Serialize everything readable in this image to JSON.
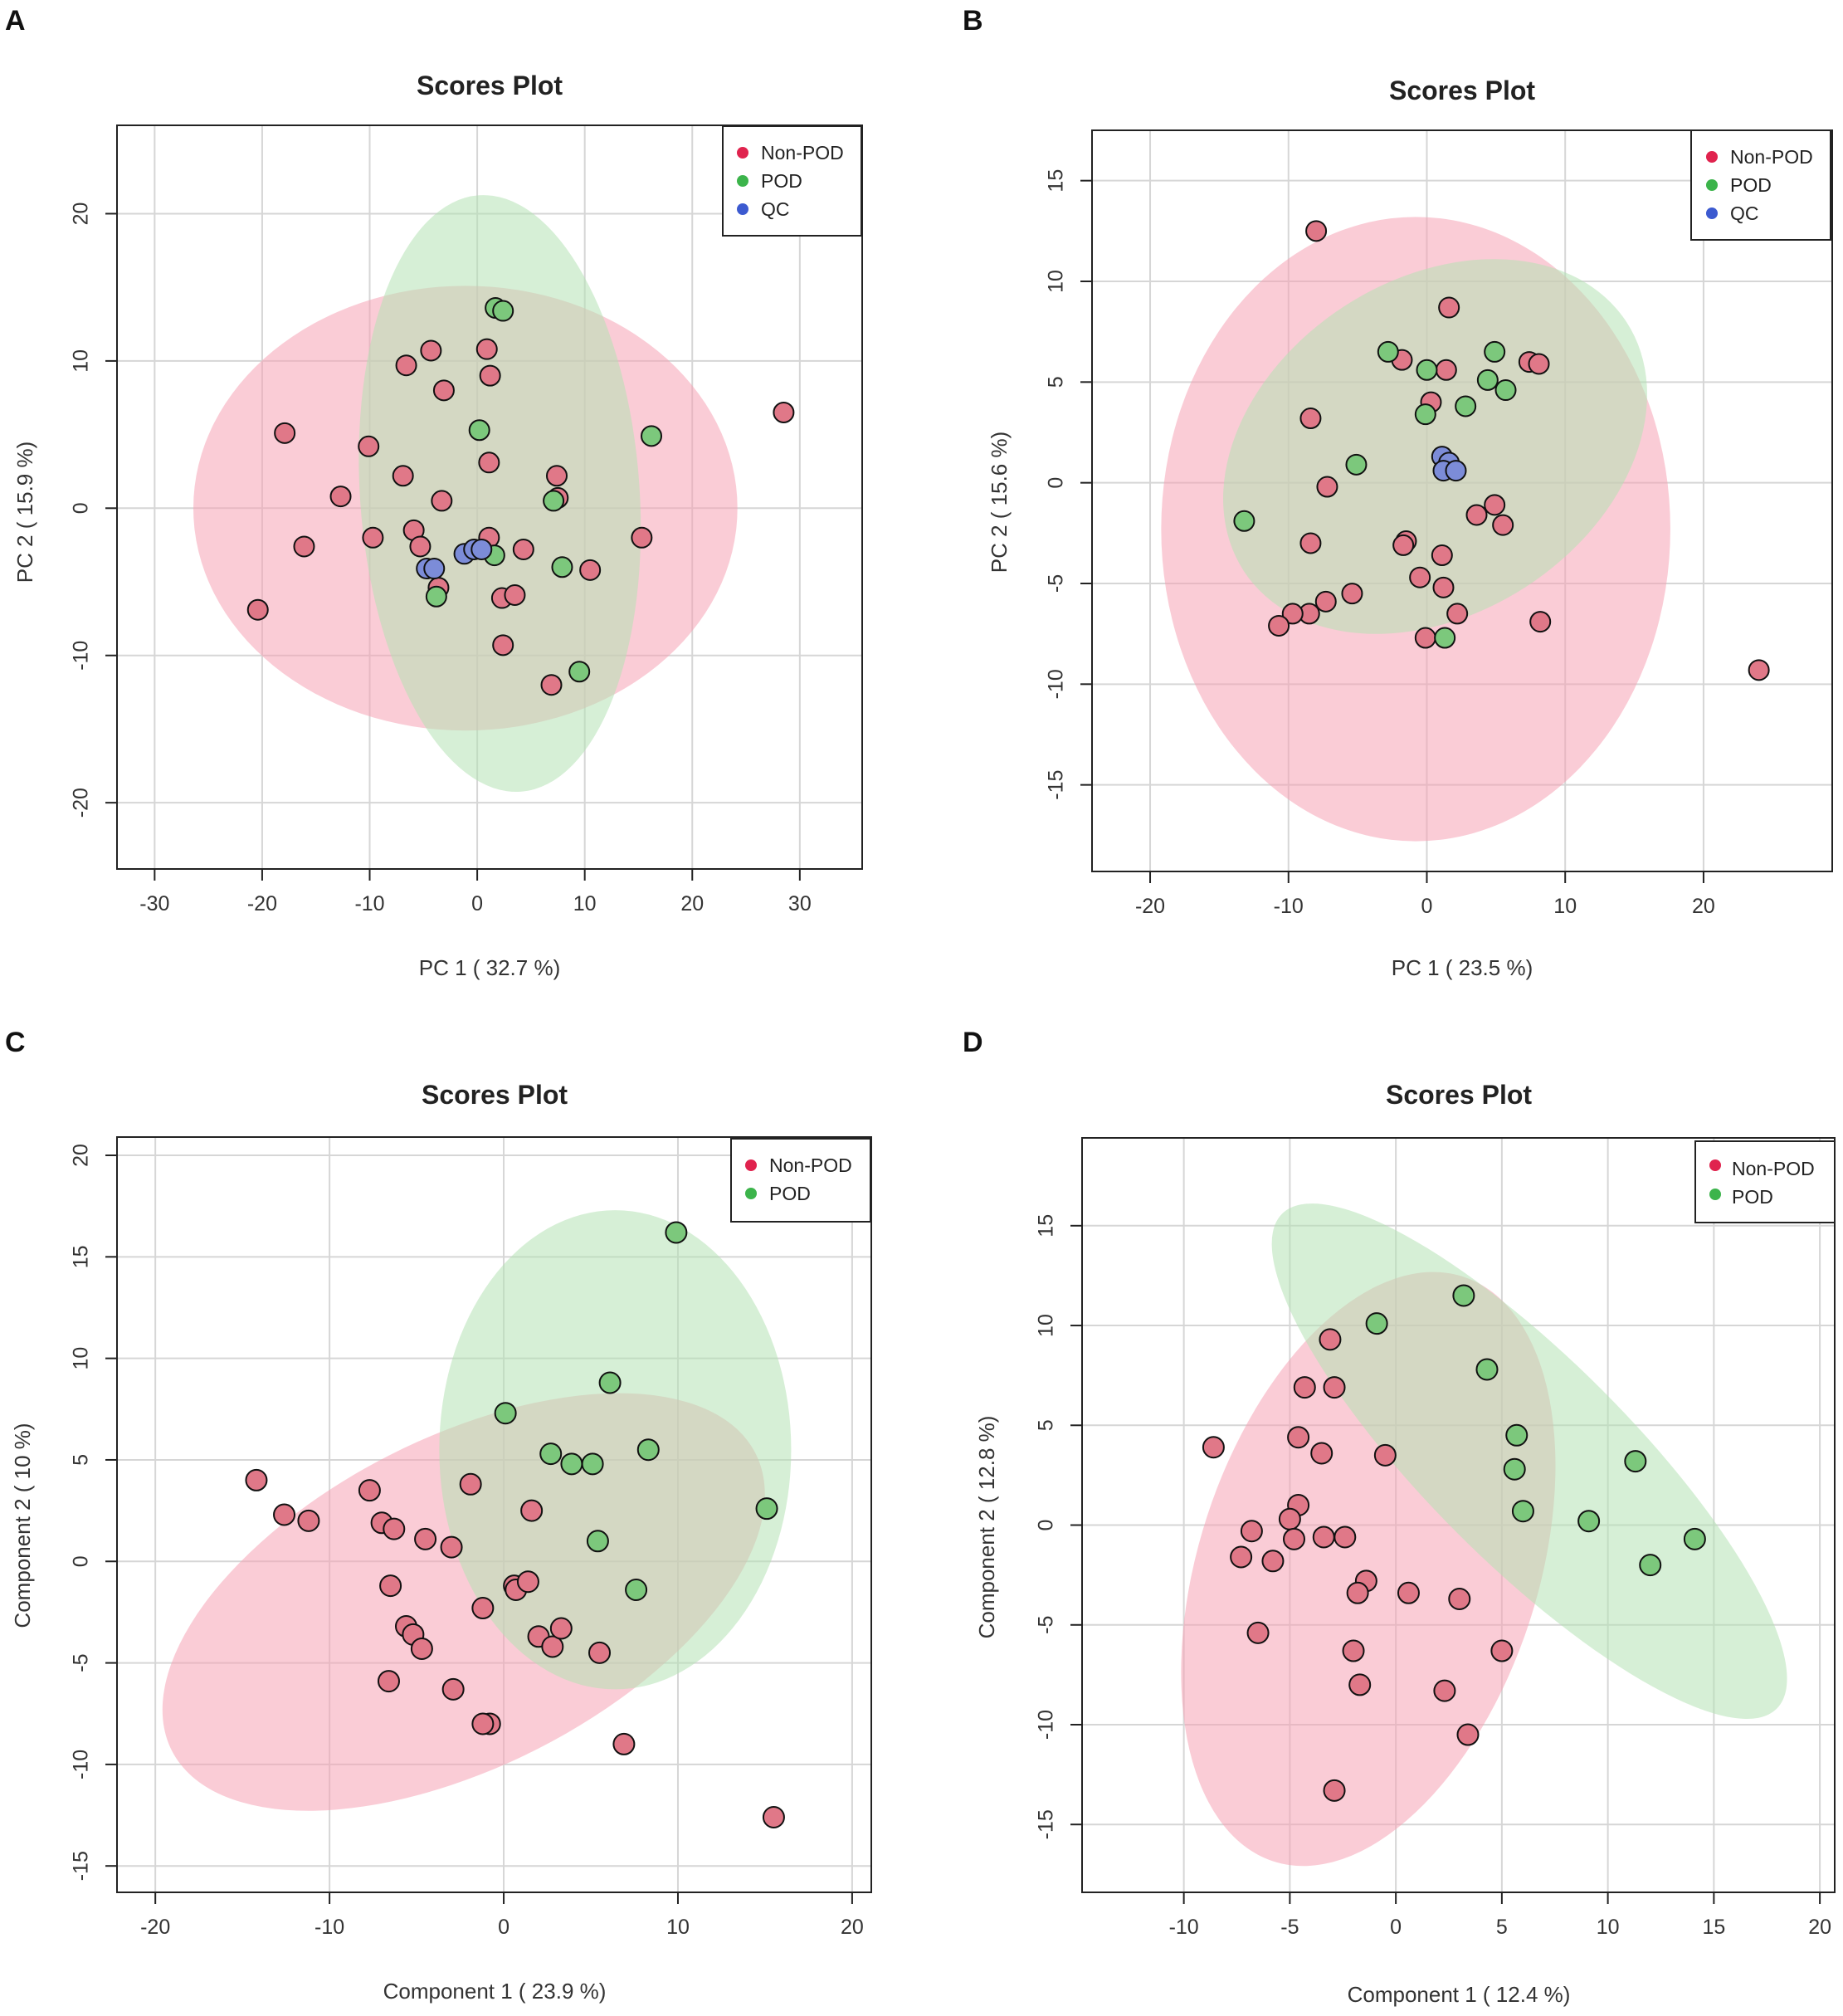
{
  "colors": {
    "non_pod_point": "#e07888",
    "non_pod_legend": "#e0234e",
    "pod_point": "#7cc87c",
    "pod_legend": "#3cb44b",
    "qc_point": "#7c8cd8",
    "qc_legend": "#3c5ad0",
    "non_pod_ellipse": "#f5a3b5",
    "pod_ellipse": "#b4e2b4",
    "grid": "#d6d6d6"
  },
  "chart_data": [
    {
      "id": "A",
      "type": "scatter",
      "title": "Scores Plot",
      "xlabel": "PC 1 ( 32.7 %)",
      "ylabel": "PC 2 ( 15.9 %)",
      "xlim": [
        -33.5,
        35.8
      ],
      "ylim": [
        -24.5,
        26
      ],
      "xticks": [
        -30,
        -20,
        -10,
        0,
        10,
        20,
        30
      ],
      "yticks": [
        -20,
        -10,
        0,
        10,
        20
      ],
      "legend": [
        "Non-POD",
        "POD",
        "QC"
      ],
      "ellipses": [
        {
          "group": "Non-POD",
          "cx": -1.1,
          "cy": 0,
          "rx": 25.3,
          "ry": 15.1,
          "angle": 0
        },
        {
          "group": "POD",
          "cx": 2.1,
          "cy": 1,
          "rx": 13.0,
          "ry": 20.3,
          "angle": 4
        }
      ],
      "series": [
        {
          "name": "Non-POD",
          "x": [
            28.5,
            -17.9,
            -10.1,
            -12.7,
            -6.9,
            -16.1,
            -9.7,
            -20.4,
            -3.1,
            -4.3,
            -6.6,
            -3.3,
            -5.9,
            -5.3,
            -3.6,
            0.9,
            1.2,
            1.1,
            1.1,
            2.3,
            3.5,
            2.4,
            4.3,
            7.4,
            7.5,
            10.5,
            15.3,
            6.9
          ],
          "y": [
            6.5,
            5.1,
            4.2,
            0.8,
            2.2,
            -2.6,
            -2,
            -6.9,
            8,
            10.7,
            9.7,
            0.5,
            -1.5,
            -2.6,
            -5.4,
            10.8,
            9,
            3.1,
            -2,
            -6.1,
            -5.9,
            -9.3,
            -2.8,
            2.2,
            0.7,
            -4.2,
            -2,
            -12
          ]
        },
        {
          "name": "POD",
          "x": [
            1.7,
            2.4,
            0.2,
            16.2,
            7.1,
            -3.8,
            1.6,
            7.9,
            9.5
          ],
          "y": [
            13.6,
            13.4,
            5.3,
            4.9,
            0.5,
            -6,
            -3.2,
            -4,
            -11.1
          ]
        },
        {
          "name": "QC",
          "x": [
            -4.7,
            -4,
            -1.2,
            -0.3,
            0.4
          ],
          "y": [
            -4.1,
            -4.1,
            -3.1,
            -2.8,
            -2.8
          ]
        }
      ]
    },
    {
      "id": "B",
      "type": "scatter",
      "title": "Scores Plot",
      "xlabel": "PC 1 ( 23.5 %)",
      "ylabel": "PC 2 ( 15.6 %)",
      "xlim": [
        -24.2,
        29.3
      ],
      "ylim": [
        -19.3,
        17.5
      ],
      "xticks": [
        -20,
        -10,
        0,
        10,
        20
      ],
      "yticks": [
        -15,
        -10,
        -5,
        0,
        5,
        10,
        15
      ],
      "legend": [
        "Non-POD",
        "POD",
        "QC"
      ],
      "ellipses": [
        {
          "group": "Non-POD",
          "cx": -0.8,
          "cy": -2.3,
          "rx": 18.4,
          "ry": 15.5,
          "angle": 0
        },
        {
          "group": "POD",
          "cx": 0.6,
          "cy": 1.8,
          "rx": 16.5,
          "ry": 8.3,
          "angle": 33
        }
      ],
      "series": [
        {
          "name": "Non-POD",
          "x": [
            -8,
            1.6,
            -1.8,
            1.4,
            7.4,
            8.1,
            0.3,
            -8.4,
            -7.2,
            -8.4,
            -1.5,
            -1.7,
            -5.4,
            -7.3,
            -8.5,
            -9.7,
            -10.7,
            -0.5,
            1.1,
            1.2,
            2.2,
            -0.1,
            3.6,
            5.5,
            4.9,
            8.2,
            24
          ],
          "y": [
            12.5,
            8.7,
            6.1,
            5.6,
            6,
            5.9,
            4,
            3.2,
            -0.2,
            -3,
            -2.9,
            -3.1,
            -5.5,
            -5.9,
            -6.5,
            -6.5,
            -7.1,
            -4.7,
            -3.6,
            -5.2,
            -6.5,
            -7.7,
            -1.6,
            -2.1,
            -1.1,
            -6.9,
            -9.3
          ]
        },
        {
          "name": "POD",
          "x": [
            -2.8,
            0,
            4.9,
            4.4,
            5.7,
            2.8,
            -0.1,
            -5.1,
            -13.2,
            1.3
          ],
          "y": [
            6.5,
            5.6,
            6.5,
            5.1,
            4.6,
            3.8,
            3.4,
            0.9,
            -1.9,
            -7.7
          ]
        },
        {
          "name": "QC",
          "x": [
            1.1,
            1.6,
            1.2,
            2.1
          ],
          "y": [
            1.3,
            1,
            0.6,
            0.6
          ]
        }
      ]
    },
    {
      "id": "C",
      "type": "scatter",
      "title": "Scores Plot",
      "xlabel": "Component 1 ( 23.9 %)",
      "ylabel": "Component 2 ( 10 %)",
      "xlim": [
        -22.2,
        21.1
      ],
      "ylim": [
        -16.3,
        20.9
      ],
      "xticks": [
        -20,
        -10,
        0,
        10,
        20
      ],
      "yticks": [
        -15,
        -10,
        -5,
        0,
        5,
        10,
        15,
        20
      ],
      "legend": [
        "Non-POD",
        "POD"
      ],
      "ellipses": [
        {
          "group": "Non-POD",
          "cx": -2.3,
          "cy": -2,
          "rx": 18.8,
          "ry": 8.1,
          "angle": 27
        },
        {
          "group": "POD",
          "cx": 6.4,
          "cy": 5.5,
          "rx": 10.1,
          "ry": 11.8,
          "angle": 0
        }
      ],
      "series": [
        {
          "name": "Non-POD",
          "x": [
            -14.2,
            -12.6,
            -11.2,
            -7.7,
            -7,
            -6.3,
            -6.5,
            -5.6,
            -5.2,
            -4.7,
            -4.5,
            -3,
            -1.9,
            -1.2,
            -0.8,
            0.6,
            0.7,
            1.4,
            1.6,
            2,
            2.8,
            3.3,
            5.5,
            6.9,
            -6.6,
            -2.9,
            -1.2,
            15.5
          ],
          "y": [
            4,
            2.3,
            2,
            3.5,
            1.9,
            1.6,
            -1.2,
            -3.2,
            -3.6,
            -4.3,
            1.1,
            0.7,
            3.8,
            -2.3,
            -8,
            -1.2,
            -1.4,
            -1,
            2.5,
            -3.7,
            -4.2,
            -3.3,
            -4.5,
            -9,
            -5.9,
            -6.3,
            -8,
            -12.6
          ]
        },
        {
          "name": "POD",
          "x": [
            9.9,
            6.1,
            8.3,
            0.1,
            2.7,
            3.9,
            5.1,
            15.1,
            5.4,
            7.6
          ],
          "y": [
            16.2,
            8.8,
            5.5,
            7.3,
            5.3,
            4.8,
            4.8,
            2.6,
            1,
            -1.4
          ]
        }
      ]
    },
    {
      "id": "D",
      "type": "scatter",
      "title": "Scores Plot",
      "xlabel": "Component 1 ( 12.4 %)",
      "ylabel": "Component 2 ( 12.8 %)",
      "xlim": [
        -14.8,
        20.7
      ],
      "ylim": [
        -18.4,
        19.4
      ],
      "xticks": [
        -10,
        -5,
        0,
        5,
        10,
        15,
        20
      ],
      "yticks": [
        -15,
        -10,
        -5,
        0,
        5,
        10,
        15
      ],
      "legend": [
        "Non-POD",
        "POD"
      ],
      "ellipses": [
        {
          "group": "Non-POD",
          "cx": -1.3,
          "cy": -2.2,
          "rx": 8.0,
          "ry": 15.4,
          "angle": -18
        },
        {
          "group": "POD",
          "cx": 6.3,
          "cy": 3.2,
          "rx": 16.5,
          "ry": 5.1,
          "angle": -45
        }
      ],
      "series": [
        {
          "name": "Non-POD",
          "x": [
            -3.1,
            -4.3,
            -2.9,
            -8.6,
            -4.6,
            -3.5,
            -0.5,
            -4.6,
            -6.8,
            -5,
            -3.4,
            -2.4,
            -7.3,
            -5.8,
            -4.8,
            -1.4,
            -1.8,
            0.6,
            3,
            5,
            -6.5,
            -2,
            -1.7,
            2.3,
            3.4,
            -2.9
          ],
          "y": [
            9.3,
            6.9,
            6.9,
            3.9,
            4.4,
            3.6,
            3.5,
            1,
            -0.3,
            0.3,
            -0.6,
            -0.6,
            -1.6,
            -1.8,
            -0.7,
            -2.8,
            -3.4,
            -3.4,
            -3.7,
            -6.3,
            -5.4,
            -6.3,
            -8,
            -8.3,
            -10.5,
            -13.3
          ]
        },
        {
          "name": "POD",
          "x": [
            3.2,
            -0.9,
            4.3,
            5.7,
            5.6,
            6,
            11.3,
            9.1,
            14.1,
            12
          ],
          "y": [
            11.5,
            10.1,
            7.8,
            4.5,
            2.8,
            0.7,
            3.2,
            0.2,
            -0.7,
            -2
          ]
        }
      ]
    }
  ]
}
